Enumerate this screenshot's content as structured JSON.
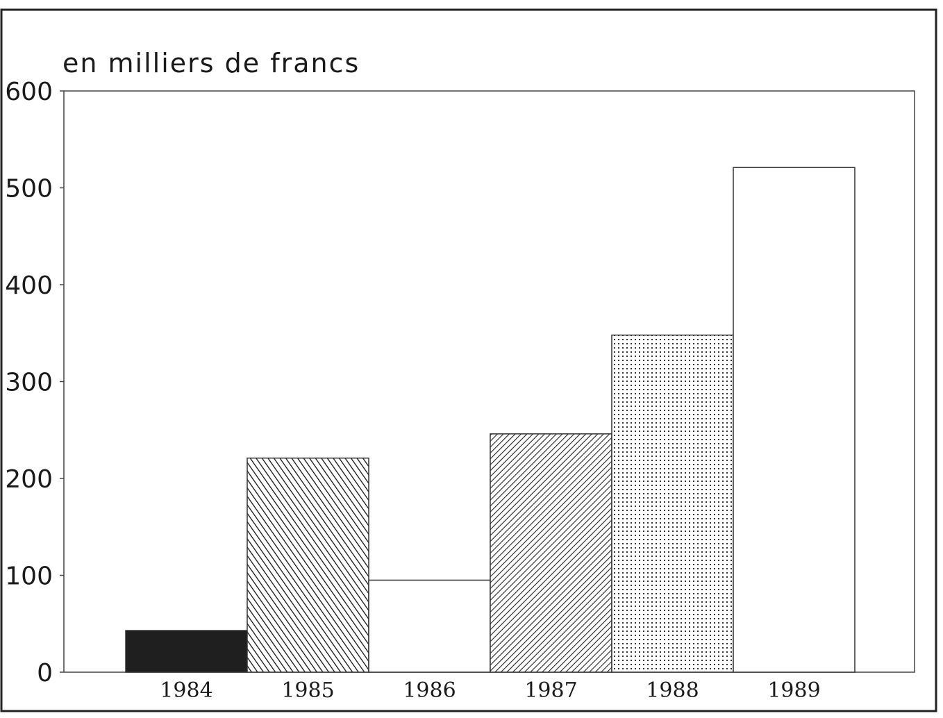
{
  "chart_data": {
    "type": "bar",
    "ylabel": "en milliers de francs",
    "xlabel": "",
    "title": "",
    "categories": [
      "1984",
      "1985",
      "1986",
      "1987",
      "1988",
      "1989"
    ],
    "values": [
      43,
      221,
      95,
      246,
      348,
      521
    ],
    "patterns": [
      "solid-black",
      "diagonal-hatch-dense-forward",
      "blank",
      "diagonal-hatch-back",
      "dots",
      "blank"
    ],
    "ylim": [
      0,
      600
    ],
    "yticks": [
      "0",
      "100",
      "200",
      "300",
      "400",
      "500",
      "600"
    ],
    "grid": false,
    "legend": "none"
  }
}
